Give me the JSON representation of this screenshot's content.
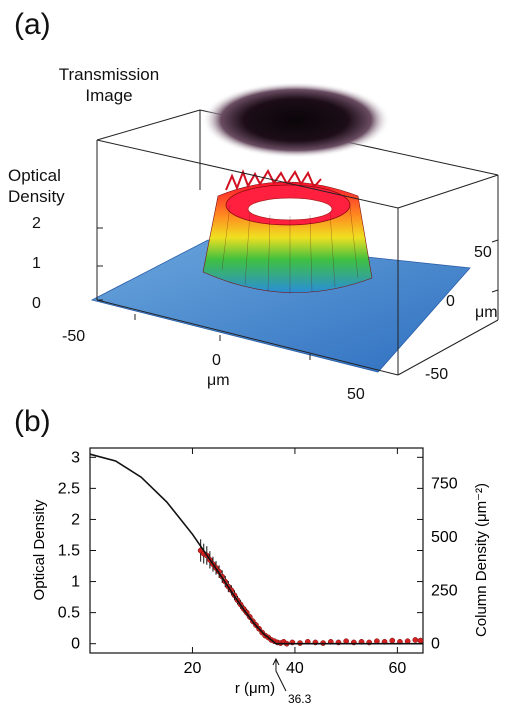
{
  "panel_a": {
    "label": "(a)",
    "transmission_label_line1": "Transmission",
    "transmission_label_line2": "Image",
    "od_label_line1": "Optical",
    "od_label_line2": "Density",
    "z_ticks": [
      "2",
      "1",
      "0"
    ],
    "x_ticks": [
      "-50",
      "0",
      "50"
    ],
    "x_unit": "μm",
    "y_ticks": [
      "50",
      "0",
      "-50"
    ],
    "y_unit": "μm"
  },
  "panel_b": {
    "label": "(b)",
    "annotation": "36.3"
  },
  "chart_data": {
    "type": "scatter",
    "xlabel": "r  (μm)",
    "ylabel": "Optical Density",
    "ylabel_right": "Column Density  (μm⁻²)",
    "xlim": [
      0,
      65
    ],
    "ylim": [
      -0.15,
      3.15
    ],
    "x_ticks": [
      20,
      40,
      60
    ],
    "y_ticks": [
      0,
      0.5,
      1,
      1.5,
      2,
      2.5,
      3
    ],
    "y_tick_labels": [
      "0",
      "0.5",
      "1",
      "1.5",
      "2",
      "2.5",
      "3"
    ],
    "right_ticks": [
      0,
      250,
      500,
      750
    ],
    "right_per_od": 291,
    "series": [
      {
        "kind": "fit_line",
        "color": "#111111",
        "x": [
          0,
          5,
          10,
          15,
          20,
          25,
          28,
          30,
          32,
          34,
          36,
          36.3,
          38,
          40,
          50,
          60,
          65
        ],
        "y": [
          3.05,
          2.94,
          2.68,
          2.28,
          1.76,
          1.16,
          0.79,
          0.55,
          0.33,
          0.15,
          0.02,
          0.0,
          0.0,
          0.0,
          0.0,
          0.0,
          0.0
        ]
      },
      {
        "kind": "data_points",
        "color": "#d42020",
        "x": [
          21.6,
          22.2,
          22.8,
          23.4,
          24.0,
          24.6,
          25.2,
          25.8,
          26.4,
          27.0,
          27.6,
          28.2,
          28.8,
          29.4,
          30.0,
          30.6,
          31.2,
          31.8,
          32.4,
          33.0,
          33.6,
          34.2,
          34.8,
          35.4,
          36.0,
          36.6,
          37.2,
          37.8,
          38.4,
          39.5,
          41.0,
          42.5,
          44.0,
          45.5,
          47.0,
          48.5,
          50.0,
          51.5,
          53.0,
          54.5,
          56.0,
          57.5,
          59.0,
          60.5,
          62.0,
          63.5,
          64.5
        ],
        "y": [
          1.5,
          1.45,
          1.42,
          1.35,
          1.28,
          1.22,
          1.16,
          1.08,
          1.0,
          0.92,
          0.86,
          0.78,
          0.7,
          0.63,
          0.56,
          0.5,
          0.43,
          0.36,
          0.3,
          0.24,
          0.18,
          0.13,
          0.1,
          0.06,
          0.04,
          0.02,
          0.01,
          0.03,
          0.0,
          0.02,
          0.01,
          0.03,
          0.02,
          0.01,
          0.03,
          0.02,
          0.04,
          0.02,
          0.03,
          0.02,
          0.04,
          0.03,
          0.05,
          0.03,
          0.04,
          0.06,
          0.05
        ],
        "err": [
          0.18,
          0.16,
          0.15,
          0.14,
          0.12,
          0.11,
          0.1,
          0.1,
          0.09,
          0.09,
          0.08,
          0.08,
          0.07,
          0.07,
          0.06,
          0.06,
          0.05,
          0.05,
          0.05,
          0.04,
          0.04,
          0.04,
          0.03,
          0.03,
          0.03,
          0.03,
          0.03,
          0.03,
          0.03,
          0.03,
          0.03,
          0.03,
          0.03,
          0.03,
          0.03,
          0.03,
          0.03,
          0.03,
          0.03,
          0.03,
          0.03,
          0.03,
          0.03,
          0.03,
          0.03,
          0.03,
          0.03
        ]
      }
    ],
    "annotations": [
      {
        "text": "36.3",
        "x": 36.3
      }
    ]
  }
}
